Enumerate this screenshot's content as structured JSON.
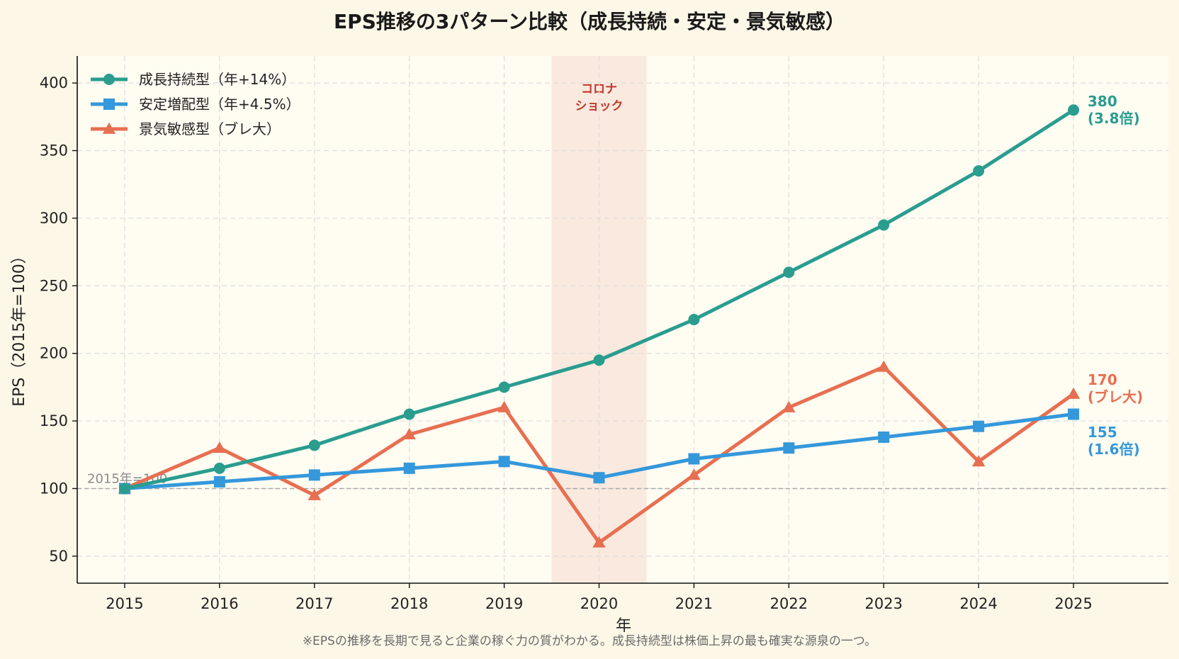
{
  "chart_data": {
    "type": "line",
    "title": "EPS推移の3パターン比較（成長持続・安定・景気敏感）",
    "xlabel": "年",
    "ylabel": "EPS（2015年=100）",
    "x": [
      2015,
      2016,
      2017,
      2018,
      2019,
      2020,
      2021,
      2022,
      2023,
      2024,
      2025
    ],
    "xlim": [
      2014.5,
      2026
    ],
    "ylim": [
      30,
      420
    ],
    "yticks": [
      50,
      100,
      150,
      200,
      250,
      300,
      350,
      400
    ],
    "grid": true,
    "legend_position": "top-left",
    "series": [
      {
        "name": "成長持続型（年+14%）",
        "color": "#2a9d8f",
        "marker": "circle",
        "values": [
          100,
          115,
          132,
          155,
          175,
          195,
          225,
          260,
          295,
          335,
          380
        ],
        "end_label": [
          "380",
          "(3.8倍)"
        ]
      },
      {
        "name": "安定増配型（年+4.5%）",
        "color": "#3498db",
        "marker": "square",
        "values": [
          100,
          105,
          110,
          115,
          120,
          108,
          122,
          130,
          138,
          146,
          155
        ],
        "end_label": [
          "155",
          "(1.6倍)"
        ]
      },
      {
        "name": "景気敏感型（ブレ大）",
        "color": "#e76f51",
        "marker": "triangle",
        "values": [
          100,
          130,
          95,
          140,
          160,
          60,
          110,
          160,
          190,
          120,
          170
        ],
        "end_label": [
          "170",
          "(ブレ大)"
        ]
      }
    ],
    "shaded_region": {
      "x_range": [
        2019.5,
        2020.5
      ],
      "color": "#f5d5cc",
      "label_lines": [
        "コロナ",
        "ショック"
      ]
    },
    "reference_line": {
      "y": 100,
      "label": "2015年=100"
    },
    "footnote": "※EPSの推移を長期で見ると企業の稼ぐ力の質がわかる。成長持続型は株価上昇の最も確実な源泉の一つ。"
  }
}
